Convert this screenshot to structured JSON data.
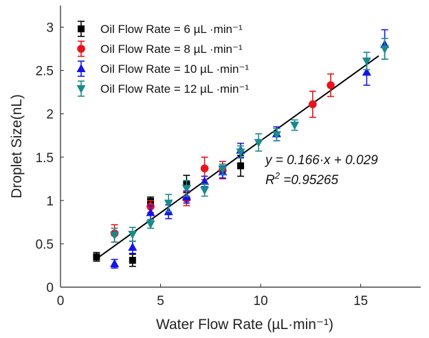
{
  "chart_data": {
    "type": "scatter",
    "xlabel": "Water Flow Rate (µL·min⁻¹)",
    "ylabel": "Droplet Size(nL)",
    "xlim": [
      0,
      18
    ],
    "ylim": [
      0,
      3.25
    ],
    "xticks": [
      0,
      5,
      10,
      15
    ],
    "yticks": [
      0,
      0.5,
      1,
      1.5,
      2,
      2.5,
      3
    ],
    "xtick_labels": [
      "0",
      "5",
      "10",
      "15"
    ],
    "ytick_labels": [
      "0",
      "0.5",
      "1",
      "1.5",
      "2",
      "2.5",
      "3"
    ],
    "grid": false,
    "legend_position": "top-left",
    "series": [
      {
        "name": "Oil Flow Rate = 6 µL ·min⁻¹",
        "color": "#000000",
        "marker": "square",
        "points": [
          {
            "x": 1.8,
            "y": 0.35,
            "err": 0.05
          },
          {
            "x": 3.6,
            "y": 0.31,
            "err": 0.07
          },
          {
            "x": 4.5,
            "y": 0.99,
            "err": 0.05
          },
          {
            "x": 6.3,
            "y": 1.19,
            "err": 0.1
          },
          {
            "x": 9.0,
            "y": 1.4,
            "err": 0.12
          }
        ]
      },
      {
        "name": "Oil Flow Rate = 8 µL ·min⁻¹",
        "color": "#e8141b",
        "marker": "circle",
        "points": [
          {
            "x": 2.7,
            "y": 0.62,
            "err": 0.1
          },
          {
            "x": 4.5,
            "y": 0.93,
            "err": 0.07
          },
          {
            "x": 6.3,
            "y": 1.02,
            "err": 0.08
          },
          {
            "x": 7.2,
            "y": 1.37,
            "err": 0.13
          },
          {
            "x": 8.1,
            "y": 1.35,
            "err": 0.1
          },
          {
            "x": 12.6,
            "y": 2.11,
            "err": 0.15
          },
          {
            "x": 13.5,
            "y": 2.33,
            "err": 0.13
          }
        ]
      },
      {
        "name": "Oil Flow Rate = 10 µL ·min⁻¹",
        "color": "#1414e6",
        "marker": "triangle-up",
        "points": [
          {
            "x": 2.7,
            "y": 0.27,
            "err": 0.05
          },
          {
            "x": 3.6,
            "y": 0.46,
            "err": 0.07
          },
          {
            "x": 4.5,
            "y": 0.86,
            "err": 0.08
          },
          {
            "x": 5.4,
            "y": 0.87,
            "err": 0.08
          },
          {
            "x": 6.3,
            "y": 1.04,
            "err": 0.07
          },
          {
            "x": 7.2,
            "y": 1.22,
            "err": 0.06
          },
          {
            "x": 8.1,
            "y": 1.33,
            "err": 0.07
          },
          {
            "x": 9.0,
            "y": 1.58,
            "err": 0.08
          },
          {
            "x": 10.8,
            "y": 1.77,
            "err": 0.08
          },
          {
            "x": 15.3,
            "y": 2.48,
            "err": 0.15
          },
          {
            "x": 16.2,
            "y": 2.8,
            "err": 0.17
          }
        ]
      },
      {
        "name": "Oil Flow Rate = 12 µL ·min⁻¹",
        "color": "#1a8a8a",
        "marker": "triangle-down",
        "points": [
          {
            "x": 2.7,
            "y": 0.6,
            "err": 0.08
          },
          {
            "x": 3.6,
            "y": 0.61,
            "err": 0.08
          },
          {
            "x": 4.5,
            "y": 0.73,
            "err": 0.05
          },
          {
            "x": 5.4,
            "y": 0.97,
            "err": 0.1
          },
          {
            "x": 6.3,
            "y": 1.14,
            "err": 0.09
          },
          {
            "x": 7.2,
            "y": 1.12,
            "err": 0.07
          },
          {
            "x": 8.1,
            "y": 1.36,
            "err": 0.06
          },
          {
            "x": 9.0,
            "y": 1.56,
            "err": 0.07
          },
          {
            "x": 9.9,
            "y": 1.67,
            "err": 0.1
          },
          {
            "x": 10.8,
            "y": 1.76,
            "err": 0.07
          },
          {
            "x": 11.7,
            "y": 1.87,
            "err": 0.06
          },
          {
            "x": 15.3,
            "y": 2.61,
            "err": 0.1
          },
          {
            "x": 16.2,
            "y": 2.75,
            "err": 0.12
          }
        ]
      }
    ],
    "fit": {
      "slope": 0.166,
      "intercept": 0.029,
      "x_range": [
        1.8,
        15.9
      ],
      "color": "#000000",
      "equation_text": "y = 0.166·x + 0.029",
      "r2_label": "R",
      "r2_sup": "2",
      "r2_value": " =0.95265"
    }
  }
}
